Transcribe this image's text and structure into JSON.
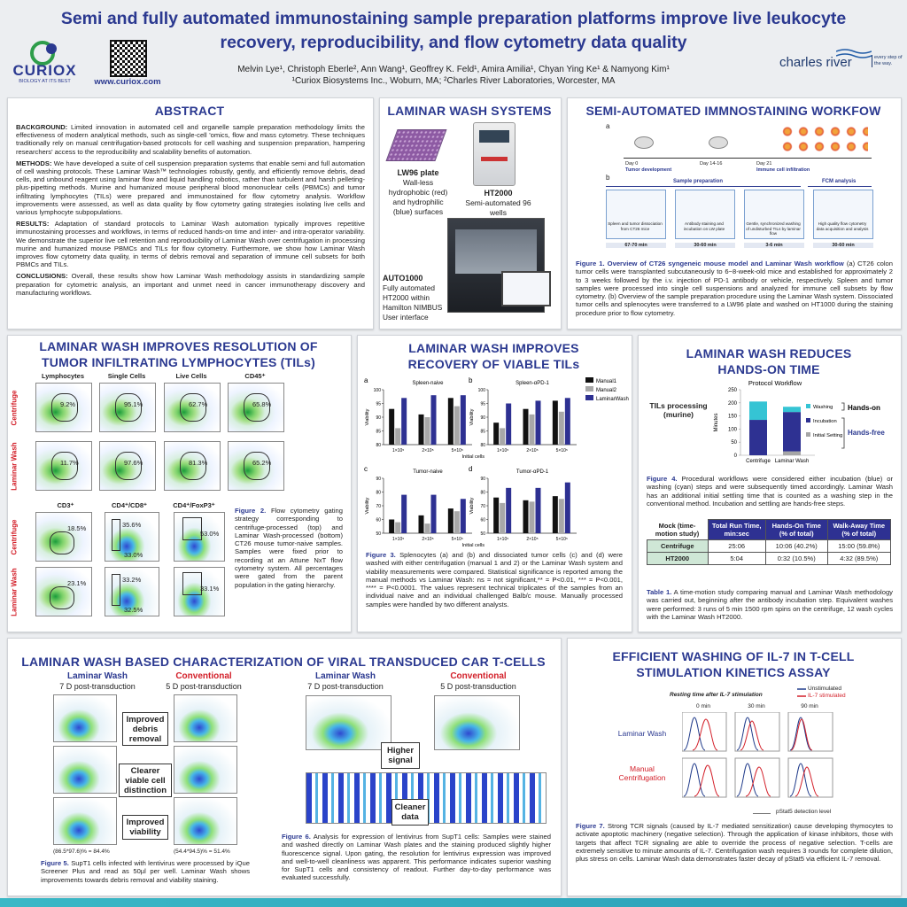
{
  "header": {
    "title": "Semi and fully automated immunostaining sample preparation platforms improve live leukocyte recovery, reproducibility, and flow cytometry data quality",
    "authors": "Melvin Lye¹, Christoph Eberle², Ann Wang¹, Geoffrey K. Feld¹, Amira Amilia¹, Chyan Ying Ke¹ & Namyong Kim¹",
    "affiliations": "¹Curiox Biosystems Inc., Woburn, MA; ²Charles River Laboratories, Worcester, MA",
    "logo_left": "CURIOX",
    "logo_left_tagline": "BIOLOGY AT ITS BEST",
    "website": "www.curiox.com",
    "logo_right": "charles river",
    "logo_right_tagline": "every step of the way."
  },
  "abstract": {
    "heading": "ABSTRACT",
    "paragraphs": [
      {
        "label": "BACKGROUND:",
        "text": "Limited innovation in automated cell and organelle sample preparation methodology limits the effectiveness of modern analytical methods, such as single-cell 'omics, flow and mass cytometry. These techniques traditionally rely on manual centrifugation-based protocols for cell washing and suspension preparation, hampering researchers' access to the reproducibility and scalability benefits of automation."
      },
      {
        "label": "METHODS:",
        "text": "We have developed a suite of cell suspension preparation systems that enable semi and full automation of cell washing protocols. These Laminar Wash™ technologies robustly, gently, and efficiently remove debris, dead cells, and unbound reagent using laminar flow and liquid handling robotics, rather than turbulent and harsh pelleting-plus-pipetting methods. Murine and humanized mouse peripheral blood mononuclear cells (PBMCs) and tumor infiltrating lymphocytes (TILs) were prepared and immunostained for flow cytometry analysis. Workflow improvements were assessed, as well as data quality by flow cytometry gating strategies isolating live cells and various lymphocyte subpopulations."
      },
      {
        "label": "RESULTS:",
        "text": "Adaptation of standard protocols to Laminar Wash automation typically improves repetitive immunostaining processes and workflows, in terms of reduced hands-on time and inter- and intra-operator variability. We demonstrate the superior live cell retention and reproducibility of Laminar Wash over centrifugation in processing murine and humanized mouse PBMCs and TILs for flow cytometry. Furthermore, we show how Laminar Wash improves flow cytometry data quality, in terms of debris removal and separation of immune cell subsets for both PBMCs and TILs."
      },
      {
        "label": "CONCLUSIONS:",
        "text": "Overall, these results show how Laminar Wash methodology assists in standardizing sample preparation for cytometric analysis, an important and unmet need in cancer immunotherapy discovery and manufacturing workflows."
      }
    ]
  },
  "systems": {
    "heading": "LAMINAR WASH SYSTEMS",
    "lw96": {
      "name": "LW96 plate",
      "desc": "Wall-less hydrophobic (red) and hydrophilic (blue) surfaces"
    },
    "ht2000": {
      "name": "HT2000",
      "desc": "Semi-automated 96 wells"
    },
    "auto1000": {
      "name": "AUTO1000",
      "desc": "Fully automated HT2000 within Hamilton NIMBUS User interface"
    }
  },
  "workflow": {
    "heading": "SEMI-AUTOMATED IMMNOSTAINING WORKFOW",
    "panel_a": "a",
    "panel_b": "b",
    "days": [
      "Day 0",
      "Day 14-16",
      "Day 21"
    ],
    "phases": [
      "Tumor development",
      "Immune cell infiltration"
    ],
    "stages": [
      "Sample preparation",
      "FCM analysis"
    ],
    "steps": [
      "Spleen and tumor dissociation from CT26 mice",
      "Antibody staining and incubation on LW plate",
      "Gentle, synchronized washing of undisturbed TILs by laminar flow",
      "High quality flow cytometry data acquisition and analysis"
    ],
    "times": [
      "67-70 min",
      "30-60 min",
      "3-6 min",
      "30-60 min"
    ],
    "caption": {
      "label": "Figure 1. Overview of CT26 syngeneic mouse model and Laminar Wash workflow",
      "text": "(a) CT26 colon tumor cells were transplanted subcutaneously to 6~8-week-old mice and established for approximately 2 to 3 weeks followed by the i.v. injection of PD-1 antibody or vehicle, respectively. Spleen and tumor samples were processed into single cell suspensions and analyzed for immune cell subsets by flow cytometry. (b) Overview of the sample preparation procedure using the Laminar Wash system. Dissociated tumor cells and splenocytes were transferred to a LW96 plate and washed on HT1000 during the staining procedure prior to flow cytometry."
    }
  },
  "tils": {
    "heading": "LAMINAR WASH IMPROVES RESOLUTION OF TUMOR INFILTRATING LYMPHOCYTES (TILs)",
    "columns_top": [
      "Lymphocytes",
      "Single Cells",
      "Live Cells",
      "CD45⁺"
    ],
    "columns_bottom": [
      "CD3⁺",
      "CD4⁺/CD8⁺",
      "CD4⁺/FoxP3⁺"
    ],
    "row_labels": [
      "Centrifuge",
      "Laminar Wash"
    ],
    "top_pcts": [
      [
        "9.2%",
        "95.1%",
        "62.7%",
        "65.8%"
      ],
      [
        "11.7%",
        "97.6%",
        "81.3%",
        "65.2%"
      ]
    ],
    "bottom_pcts": [
      [
        "18.5%",
        "35.6%",
        "33.0%",
        "53.0%"
      ],
      [
        "23.1%",
        "33.2%",
        "32.5%",
        "33.1%"
      ]
    ],
    "caption": {
      "label": "Figure 2.",
      "text": "Flow cytometry gating strategy corresponding to centrifuge-processed (top) and Laminar Wash-processed (bottom) CT26 mouse tumor-naive samples. Samples were fixed prior to recording at an Attune NxT flow cytometry system. All percentages were gated from the parent population in the gating hierarchy."
    }
  },
  "recovery": {
    "heading": "LAMINAR WASH IMPROVES RECOVERY OF VIABLE TILs",
    "ylabel": "Viability",
    "xlabel": "Initial cells",
    "categories": [
      "1×10⁵",
      "2×10⁵",
      "5×10⁵"
    ],
    "series": [
      {
        "name": "Manual1",
        "color": "#111111"
      },
      {
        "name": "Manual2",
        "color": "#a8a8a8"
      },
      {
        "name": "LaminarWash",
        "color": "#2e3192"
      }
    ],
    "panels": [
      {
        "letter": "a",
        "title": "Spleen-naive",
        "ylim": [
          80,
          100
        ],
        "yticks": [
          80,
          85,
          90,
          95,
          100
        ],
        "values": [
          [
            93,
            91,
            97
          ],
          [
            86,
            90,
            94
          ],
          [
            97,
            98,
            98
          ]
        ]
      },
      {
        "letter": "b",
        "title": "Spleen-αPD-1",
        "ylim": [
          80,
          100
        ],
        "yticks": [
          80,
          85,
          90,
          95,
          100
        ],
        "values": [
          [
            88,
            93,
            96
          ],
          [
            86,
            91,
            92
          ],
          [
            95,
            96,
            97
          ]
        ]
      },
      {
        "letter": "c",
        "title": "Tumor-naive",
        "ylim": [
          50,
          90
        ],
        "yticks": [
          50,
          60,
          70,
          80,
          90
        ],
        "values": [
          [
            60,
            63,
            68
          ],
          [
            58,
            57,
            66
          ],
          [
            78,
            78,
            75
          ]
        ]
      },
      {
        "letter": "d",
        "title": "Tumor-αPD-1",
        "ylim": [
          50,
          90
        ],
        "yticks": [
          50,
          60,
          70,
          80,
          90
        ],
        "values": [
          [
            76,
            74,
            77
          ],
          [
            72,
            73,
            75
          ],
          [
            83,
            83,
            87
          ]
        ]
      }
    ],
    "caption": {
      "label": "Figure 3.",
      "text": "Splenocytes (a) and (b) and dissociated tumor cells (c) and (d) were washed with either centrifugation (manual 1 and 2) or the Laminar Wash system and viability measurements were compared. Statistical significance is reported among the manual methods vs Laminar Wash: ns = not significant,** = P<0.01, *** = P<0.001, **** = P<0.0001. The values represent technical triplicates of the samples from an individual naive and an individual challenged Balb/c mouse. Manually processed samples were handled by two different analysts."
    }
  },
  "hands_on": {
    "heading": "LAMINAR WASH REDUCES HANDS-ON TIME",
    "row_label": "TILs processing (murine)",
    "chart": {
      "title": "Protocol Workflow",
      "ylabel": "Minutes",
      "categories": [
        "Centrifuge",
        "Laminar Wash"
      ],
      "ylim": [
        0,
        250
      ],
      "yticks": [
        0,
        50,
        100,
        150,
        200,
        250
      ],
      "series": [
        {
          "name": "Initial Setting",
          "color": "#a6a6a6",
          "values": [
            0,
            15
          ]
        },
        {
          "name": "Incubation",
          "color": "#2e3192",
          "values": [
            135,
            150
          ]
        },
        {
          "name": "Washing",
          "color": "#35c4d4",
          "values": [
            70,
            20
          ]
        }
      ]
    },
    "brackets": [
      "Hands-on",
      "Hands-free"
    ],
    "caption": {
      "label": "Figure 4.",
      "text": "Procedural workflows were considered either incubation (blue) or washing (cyan) steps and were subsequently timed accordingly. Laminar Wash has an additional initial settling time that is counted as a washing step in the conventional method. Incubation and settling are hands-free steps."
    },
    "table": {
      "header": [
        "Mock (time-motion study)",
        "Total Run Time, min:sec",
        "Hands-On Time (% of total)",
        "Walk-Away Time (% of total)"
      ],
      "rows": [
        [
          "Centrifuge",
          "25:06",
          "10:06 (40.2%)",
          "15:00 (59.8%)"
        ],
        [
          "HT2000",
          "5:04",
          "0:32 (10.5%)",
          "4:32 (89.5%)"
        ]
      ]
    },
    "table_caption": {
      "label": "Table 1.",
      "text": "A time-motion study comparing manual and Laminar Wash methodology was carried out, beginning after the antibody incubation step. Equivalent washes were performed: 3 runs of 5 min 1500 rpm spins on the centrifuge, 12 wash cycles with the Laminar Wash HT2000."
    }
  },
  "cart": {
    "heading": "LAMINAR WASH BASED CHARACTERIZATION OF VIRAL TRANSDUCED CAR T-CELLS",
    "lw_title": "Laminar Wash",
    "lw_sub": "7 D post-transduction",
    "conv_title": "Conventional",
    "conv_sub": "5 D post-transduction",
    "fig5_callouts": [
      "Improved debris removal",
      "Clearer viable cell distinction",
      "Improved viability"
    ],
    "fig5_results": [
      "(86.5*97.6)% = 84.4%",
      "(54.4*94.5)% = 51.4%"
    ],
    "fig6_callouts": [
      "Higher signal",
      "Cleaner data"
    ],
    "caption5": {
      "label": "Figure 5.",
      "text": "SupT1 cells infected with lentivirus were processed by iQue Screener Plus and read as 50µl per well. Laminar Wash shows improvements towards debris removal and viability staining."
    },
    "caption6": {
      "label": "Figure 6.",
      "text": "Analysis for expression of lentivirus from SupT1 cells: Samples were stained and washed directly on Laminar Wash plates and the staining produced slightly higher fluorescence signal. Upon gating, the resolution for lentivirus expression was improved and well-to-well cleanliness was apparent. This performance indicates superior washing for SupT1 cells and consistency of readout. Further day-to-day performance was evaluated successfully."
    }
  },
  "il7": {
    "heading": "EFFICIENT WASHING OF IL-7 IN T-CELL STIMULATION KINETICS ASSAY",
    "subtitle": "Resting time after IL-7 stimulation",
    "legend": [
      "Unstimulated",
      "IL-7 stimulated"
    ],
    "times": [
      "0 min",
      "30 min",
      "90 min"
    ],
    "rows": [
      "Laminar Wash",
      "Manual Centrifugation"
    ],
    "xlabel": "pStat5 detection level",
    "caption": {
      "label": "Figure 7.",
      "text": "Strong TCR signals (caused by IL-7 mediated sensitization) cause developing thymocytes to activate apoptotic machinery (negative selection). Through the application of kinase inhibitors, those with targets that affect TCR signaling are able to override the process of negative selection. T-cells are extremely sensitive to minute amounts of IL-7. Centrifugation wash requires 3 rounds for complete dilution, plus stress on cells. Laminar Wash data demonstrates faster decay of pStat5 via efficient IL-7 removal."
    }
  }
}
